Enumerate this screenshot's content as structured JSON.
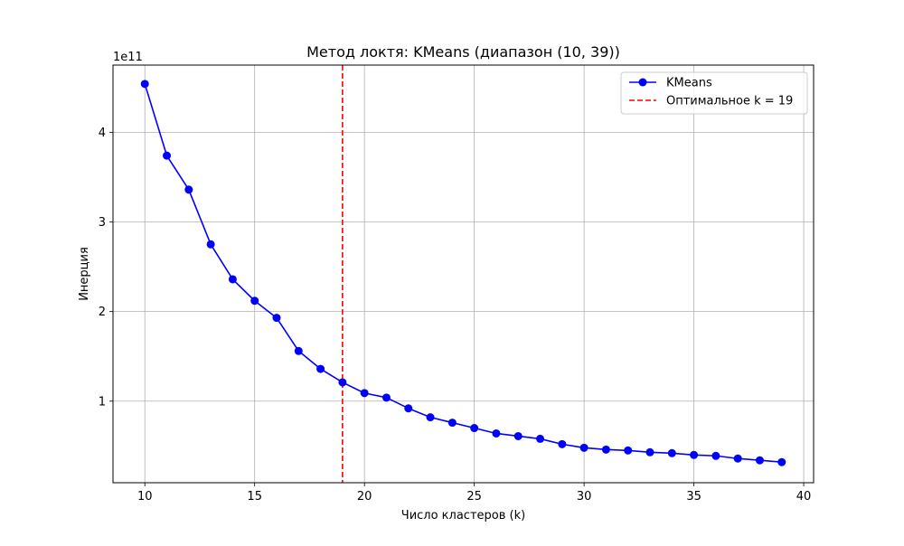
{
  "chart_data": {
    "type": "line",
    "title": "Метод локтя: KMeans (диапазон (10, 39))",
    "xlabel": "Число кластеров (k)",
    "ylabel": "Инерция",
    "offset_label": "1e11",
    "xlim": [
      8.55,
      40.45
    ],
    "ylim": [
      0.09,
      4.75
    ],
    "y_multiplier": 100000000000,
    "xticks": [
      10,
      15,
      20,
      25,
      30,
      35,
      40
    ],
    "yticks": [
      1,
      2,
      3,
      4
    ],
    "grid": true,
    "legend_position": "top-right",
    "x": [
      10,
      11,
      12,
      13,
      14,
      15,
      16,
      17,
      18,
      19,
      20,
      21,
      22,
      23,
      24,
      25,
      26,
      27,
      28,
      29,
      30,
      31,
      32,
      33,
      34,
      35,
      36,
      37,
      38,
      39
    ],
    "series": [
      {
        "name": "KMeans",
        "color": "#0000ff",
        "marker": "circle",
        "values": [
          4.54,
          3.74,
          3.36,
          2.75,
          2.36,
          2.12,
          1.93,
          1.56,
          1.36,
          1.21,
          1.09,
          1.04,
          0.92,
          0.82,
          0.76,
          0.7,
          0.64,
          0.61,
          0.58,
          0.52,
          0.48,
          0.46,
          0.45,
          0.43,
          0.42,
          0.4,
          0.39,
          0.36,
          0.34,
          0.32
        ]
      }
    ],
    "vline": {
      "x": 19,
      "label": "Оптимальное k = 19",
      "color": "#ff0000",
      "style": "dashed"
    }
  }
}
